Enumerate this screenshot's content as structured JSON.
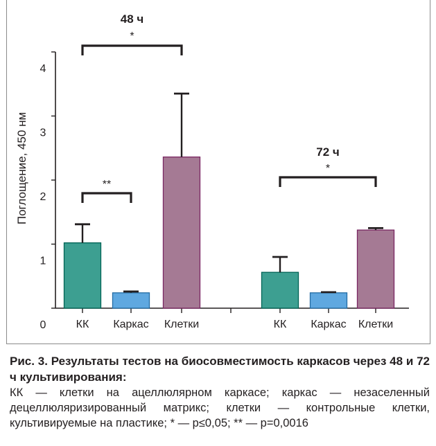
{
  "chart_data": {
    "type": "bar",
    "ylabel": "Поглощение, 450 нм",
    "xlabel": "",
    "ylim": [
      0,
      4
    ],
    "yticks": [
      0,
      1,
      2,
      3,
      4
    ],
    "categories": [
      "КК",
      "Каркас",
      "Клетки",
      "КК",
      "Каркас",
      "Клетки"
    ],
    "groups": [
      {
        "name": "48 ч",
        "bars": [
          {
            "category": "КК",
            "value": 1.02,
            "error": 0.29,
            "color": "#3d9f91"
          },
          {
            "category": "Каркас",
            "value": 0.24,
            "error": 0.02,
            "color": "#5fa8e0"
          },
          {
            "category": "Клетки",
            "value": 2.36,
            "error": 0.99,
            "color": "#a57a94"
          }
        ]
      },
      {
        "name": "72 ч",
        "bars": [
          {
            "category": "КК",
            "value": 0.56,
            "error": 0.24,
            "color": "#3d9f91"
          },
          {
            "category": "Каркас",
            "value": 0.24,
            "error": 0.01,
            "color": "#5fa8e0"
          },
          {
            "category": "Клетки",
            "value": 1.22,
            "error": 0.03,
            "color": "#a57a94"
          }
        ]
      }
    ],
    "annotations": [
      {
        "label": "48 ч",
        "stars": "*",
        "from": 0,
        "to": 2
      },
      {
        "label": "",
        "stars": "**",
        "from": 0,
        "to": 1
      },
      {
        "label": "72 ч",
        "stars": "*",
        "from": 3,
        "to": 5
      }
    ]
  },
  "caption": {
    "title": "Рис. 3. Результаты тестов на биосовместимость каркасов через 48 и 72 ч культивирования:",
    "body": "КК — клетки на ацеллюлярном каркасе; каркас — незаселенный децеллюляризированный матрикс; клетки — контрольные клетки, культивируемые на пластике; * — p≤0,05; ** — p=0,0016"
  }
}
